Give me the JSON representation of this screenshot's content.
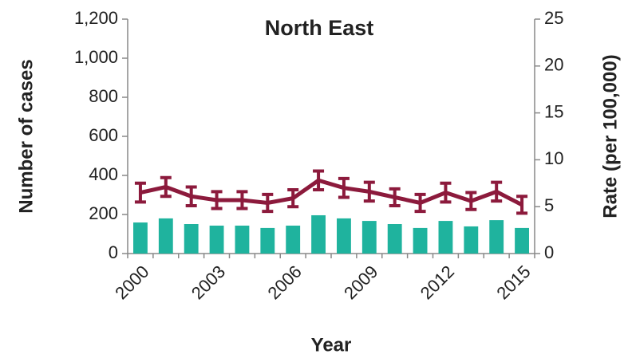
{
  "chart_data": {
    "type": "bar_line",
    "title": "North East",
    "x_label": "Year",
    "y_label": "Number of cases",
    "y2_label": "Rate (per 100,000)",
    "categories": [
      "2000",
      null,
      null,
      "2003",
      null,
      null,
      "2006",
      null,
      null,
      "2009",
      null,
      null,
      "2012",
      null,
      null,
      "2015"
    ],
    "series": [
      {
        "name": "Number of cases",
        "type": "bar",
        "color": "#1fb39e",
        "values": [
          159,
          180,
          151,
          143,
          143,
          131,
          143,
          196,
          180,
          167,
          151,
          131,
          167,
          139,
          171,
          131
        ]
      },
      {
        "name": "Rate (per 100,000)",
        "type": "line",
        "axis": "y2",
        "color": "#8c1a3c",
        "values": [
          6.5,
          7.1,
          6.1,
          5.7,
          5.7,
          5.4,
          5.9,
          7.8,
          7.0,
          6.6,
          6.0,
          5.4,
          6.5,
          5.6,
          6.6,
          5.2
        ],
        "errors": [
          1.0,
          1.0,
          1.0,
          0.9,
          0.9,
          0.9,
          0.9,
          1.0,
          1.0,
          1.0,
          0.9,
          0.9,
          1.0,
          0.9,
          1.0,
          0.9
        ]
      }
    ],
    "ylim": [
      0,
      1200
    ],
    "yticks": [
      0,
      200,
      400,
      600,
      800,
      {
        "value": 1000,
        "label": "1,000"
      },
      {
        "value": 1200,
        "label": "1,200"
      }
    ],
    "y2lim": [
      0,
      25
    ],
    "y2ticks": [
      0,
      5,
      10,
      15,
      20,
      25
    ]
  }
}
